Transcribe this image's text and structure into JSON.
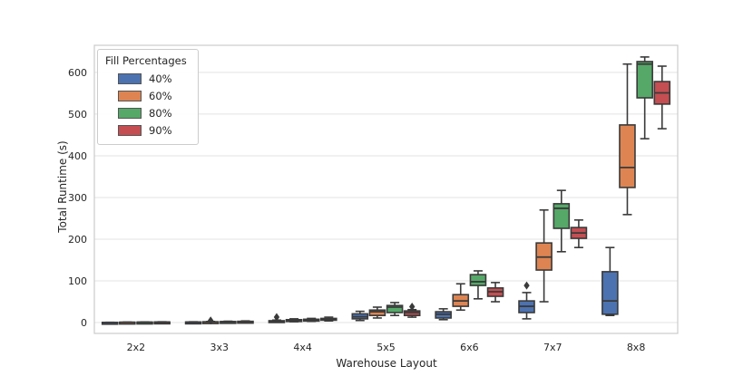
{
  "figure": {
    "background": "#ffffff"
  },
  "chart_data": {
    "type": "box",
    "title": "",
    "xlabel": "Warehouse Layout",
    "ylabel": "Total Runtime (s)",
    "legend_title": "Fill Percentages",
    "legend_position": "upper left",
    "grid": "horizontal",
    "categories": [
      "2x2",
      "3x3",
      "4x4",
      "5x5",
      "6x6",
      "7x7",
      "8x8"
    ],
    "yticks": [
      0,
      100,
      200,
      300,
      400,
      500,
      600
    ],
    "ylim": [
      -26,
      665
    ],
    "colors": {
      "grid": "#e3e3e3",
      "spine": "#cbcbcb",
      "box_edge": "#3a3a3a",
      "text": "#262626"
    },
    "series": [
      {
        "name": "40%",
        "color": "#4C72B0",
        "boxes": [
          {
            "whislo": 0.1,
            "q1": 0.2,
            "med": 0.3,
            "q3": 0.5,
            "whishi": 0.7,
            "fliers": []
          },
          {
            "whislo": 0.4,
            "q1": 0.7,
            "med": 1.0,
            "q3": 1.4,
            "whishi": 1.9,
            "fliers": []
          },
          {
            "whislo": 1,
            "q1": 2,
            "med": 3,
            "q3": 4.5,
            "whishi": 6,
            "fliers": [
              13
            ]
          },
          {
            "whislo": 5,
            "q1": 9,
            "med": 14,
            "q3": 21,
            "whishi": 27,
            "fliers": []
          },
          {
            "whislo": 7,
            "q1": 11,
            "med": 20,
            "q3": 26,
            "whishi": 33,
            "fliers": []
          },
          {
            "whislo": 9,
            "q1": 24,
            "med": 39,
            "q3": 52,
            "whishi": 72,
            "fliers": [
              89
            ]
          },
          {
            "whislo": 17,
            "q1": 20,
            "med": 52,
            "q3": 122,
            "whishi": 180,
            "fliers": []
          }
        ]
      },
      {
        "name": "60%",
        "color": "#DD8452",
        "boxes": [
          {
            "whislo": 0.2,
            "q1": 0.4,
            "med": 0.6,
            "q3": 0.9,
            "whishi": 1.2,
            "fliers": []
          },
          {
            "whislo": 0.6,
            "q1": 1.0,
            "med": 1.5,
            "q3": 2.0,
            "whishi": 2.7,
            "fliers": [
              5
            ]
          },
          {
            "whislo": 2,
            "q1": 3.5,
            "med": 5,
            "q3": 7,
            "whishi": 9,
            "fliers": []
          },
          {
            "whislo": 11,
            "q1": 17,
            "med": 26,
            "q3": 30,
            "whishi": 37,
            "fliers": []
          },
          {
            "whislo": 30,
            "q1": 39,
            "med": 52,
            "q3": 67,
            "whishi": 93,
            "fliers": []
          },
          {
            "whislo": 50,
            "q1": 126,
            "med": 157,
            "q3": 191,
            "whishi": 270,
            "fliers": []
          },
          {
            "whislo": 259,
            "q1": 324,
            "med": 372,
            "q3": 474,
            "whishi": 620,
            "fliers": []
          }
        ]
      },
      {
        "name": "80%",
        "color": "#55A868",
        "boxes": [
          {
            "whislo": 0.3,
            "q1": 0.5,
            "med": 0.8,
            "q3": 1.1,
            "whishi": 1.5,
            "fliers": []
          },
          {
            "whislo": 0.8,
            "q1": 1.3,
            "med": 1.9,
            "q3": 2.5,
            "whishi": 3.3,
            "fliers": []
          },
          {
            "whislo": 3,
            "q1": 5,
            "med": 6.5,
            "q3": 8,
            "whishi": 10,
            "fliers": []
          },
          {
            "whislo": 17,
            "q1": 24,
            "med": 37,
            "q3": 41,
            "whishi": 48,
            "fliers": []
          },
          {
            "whislo": 57,
            "q1": 89,
            "med": 98,
            "q3": 115,
            "whishi": 124,
            "fliers": []
          },
          {
            "whislo": 170,
            "q1": 226,
            "med": 274,
            "q3": 285,
            "whishi": 317,
            "fliers": []
          },
          {
            "whislo": 441,
            "q1": 539,
            "med": 620,
            "q3": 626,
            "whishi": 637,
            "fliers": []
          }
        ]
      },
      {
        "name": "90%",
        "color": "#C44E52",
        "boxes": [
          {
            "whislo": 0.4,
            "q1": 0.7,
            "med": 1.0,
            "q3": 1.4,
            "whishi": 1.9,
            "fliers": []
          },
          {
            "whislo": 1.0,
            "q1": 1.6,
            "med": 2.3,
            "q3": 3.0,
            "whishi": 4.0,
            "fliers": []
          },
          {
            "whislo": 4,
            "q1": 6,
            "med": 8,
            "q3": 10,
            "whishi": 13,
            "fliers": []
          },
          {
            "whislo": 13,
            "q1": 17,
            "med": 24,
            "q3": 28,
            "whishi": 31,
            "fliers": [
              38
            ]
          },
          {
            "whislo": 50,
            "q1": 63,
            "med": 74,
            "q3": 83,
            "whishi": 96,
            "fliers": []
          },
          {
            "whislo": 180,
            "q1": 202,
            "med": 215,
            "q3": 228,
            "whishi": 246,
            "fliers": []
          },
          {
            "whislo": 465,
            "q1": 524,
            "med": 551,
            "q3": 578,
            "whishi": 615,
            "fliers": []
          }
        ]
      }
    ]
  }
}
